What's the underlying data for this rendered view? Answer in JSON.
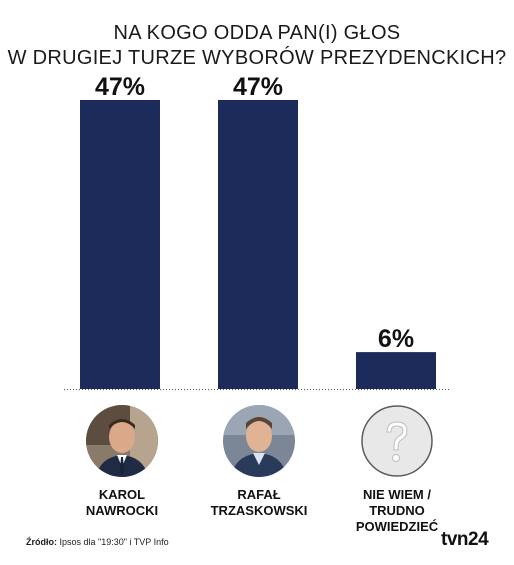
{
  "title_line1": "NA KOGO ODDA PAN(I) GŁOS",
  "title_line2": "W DRUGIEJ TURZE WYBORÓW PREZYDENCKICH?",
  "chart_data": {
    "type": "bar",
    "categories": [
      "KAROL NAWROCKI",
      "RAFAŁ TRZASKOWSKI",
      "NIE WIEM / TRUDNO POWIEDZIEĆ"
    ],
    "values": [
      47,
      47,
      6
    ],
    "value_labels": [
      "47%",
      "47%",
      "6%"
    ],
    "ylim": [
      0,
      50
    ],
    "bar_color": "#1c2b59",
    "grid": false
  },
  "candidates": [
    {
      "line1": "KAROL",
      "line2": "NAWROCKI",
      "line3": "",
      "avatar": "person-photo-icon"
    },
    {
      "line1": "RAFAŁ",
      "line2": "TRZASKOWSKI",
      "line3": "",
      "avatar": "person-photo-icon"
    },
    {
      "line1": "NIE WIEM /",
      "line2": "TRUDNO",
      "line3": "POWIEDZIEĆ",
      "avatar": "question-mark-icon"
    }
  ],
  "source_label": "Źródło:",
  "source_text": " Ipsos dla \"19:30\" i TVP Info",
  "logo": "tvn24"
}
